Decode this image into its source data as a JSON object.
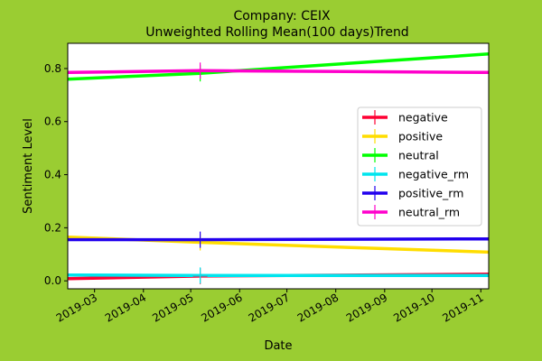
{
  "chart_data": {
    "type": "line",
    "title": "Company: CEIX",
    "subtitle": "Unweighted Rolling Mean(100 days)Trend",
    "xlabel": "Date",
    "ylabel": "Sentiment Level",
    "x_range": [
      "2019-02-12",
      "2019-11-06"
    ],
    "ylim": [
      -0.03,
      0.895
    ],
    "x_ticks": [
      "2019-03",
      "2019-04",
      "2019-05",
      "2019-06",
      "2019-07",
      "2019-08",
      "2019-09",
      "2019-10",
      "2019-11"
    ],
    "y_ticks": [
      "0.0",
      "0.2",
      "0.4",
      "0.6",
      "0.8"
    ],
    "marker_date": "2019-05-07",
    "legend_position": "center-right",
    "grid": false,
    "background_color": "#9acd32",
    "plot_background_color": "#ffffff",
    "series": [
      {
        "name": "negative",
        "color": "#ff0033",
        "x": [
          "2019-02-12",
          "2019-05-07",
          "2019-11-06"
        ],
        "y": [
          0.008,
          0.018,
          0.025
        ]
      },
      {
        "name": "positive",
        "color": "#ffdd00",
        "x": [
          "2019-02-12",
          "2019-05-07",
          "2019-11-06"
        ],
        "y": [
          0.165,
          0.145,
          0.108
        ]
      },
      {
        "name": "neutral",
        "color": "#00ff00",
        "x": [
          "2019-02-12",
          "2019-05-07",
          "2019-11-06"
        ],
        "y": [
          0.76,
          0.782,
          0.855
        ]
      },
      {
        "name": "negative_rm",
        "color": "#00e5ee",
        "x": [
          "2019-02-12",
          "2019-05-07",
          "2019-11-06"
        ],
        "y": [
          0.022,
          0.02,
          0.02
        ]
      },
      {
        "name": "positive_rm",
        "color": "#2200ee",
        "x": [
          "2019-02-12",
          "2019-05-07",
          "2019-11-06"
        ],
        "y": [
          0.155,
          0.155,
          0.158
        ]
      },
      {
        "name": "neutral_rm",
        "color": "#ff00cc",
        "x": [
          "2019-02-12",
          "2019-05-07",
          "2019-11-06"
        ],
        "y": [
          0.785,
          0.792,
          0.785
        ]
      }
    ]
  }
}
